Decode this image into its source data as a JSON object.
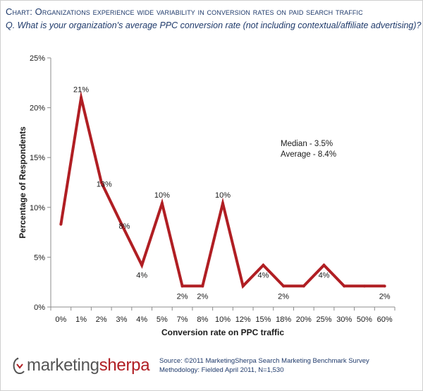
{
  "header": {
    "title": "Chart: Organizations experience wide variability in conversion rates on paid search traffic",
    "question": "Q. What is your organization's average PPC conversion rate (not including contextual/affiliate advertising)?"
  },
  "chart_data": {
    "type": "line",
    "categories": [
      "0%",
      "1%",
      "2%",
      "3%",
      "4%",
      "5%",
      "7%",
      "8%",
      "10%",
      "12%",
      "15%",
      "18%",
      "20%",
      "25%",
      "30%",
      "50%",
      "60%"
    ],
    "values": [
      8.3,
      21,
      12.5,
      8.3,
      4.2,
      10.4,
      2.1,
      2.1,
      10.4,
      2.1,
      4.2,
      2.1,
      2.1,
      4.2,
      2.1,
      2.1,
      2.1
    ],
    "data_labels": [
      {
        "index": 1,
        "text": "21%"
      },
      {
        "index": 2,
        "text": "13%"
      },
      {
        "index": 3,
        "text": "8%"
      },
      {
        "index": 4,
        "text": "4%"
      },
      {
        "index": 5,
        "text": "10%"
      },
      {
        "index": 6,
        "text": "2%"
      },
      {
        "index": 7,
        "text": "2%"
      },
      {
        "index": 8,
        "text": "10%"
      },
      {
        "index": 10,
        "text": "4%"
      },
      {
        "index": 11,
        "text": "2%"
      },
      {
        "index": 13,
        "text": "4%"
      },
      {
        "index": 16,
        "text": "2%"
      }
    ],
    "yticks": [
      "0%",
      "5%",
      "10%",
      "15%",
      "20%",
      "25%"
    ],
    "ylim": [
      0,
      25
    ],
    "xlabel": "Conversion rate on PPC traffic",
    "ylabel": "Percentage of Respondents",
    "annotation": [
      "Median - 3.5%",
      "Average  - 8.4%"
    ],
    "line_color": "#b01e23",
    "grid": false
  },
  "footer": {
    "logo_part1": "marketing",
    "logo_part2": "sherpa",
    "source": "Source: ©2011 MarketingSherpa Search Marketing Benchmark Survey",
    "methodology": "Methodology: Fielded April 2011, N=1,530"
  }
}
